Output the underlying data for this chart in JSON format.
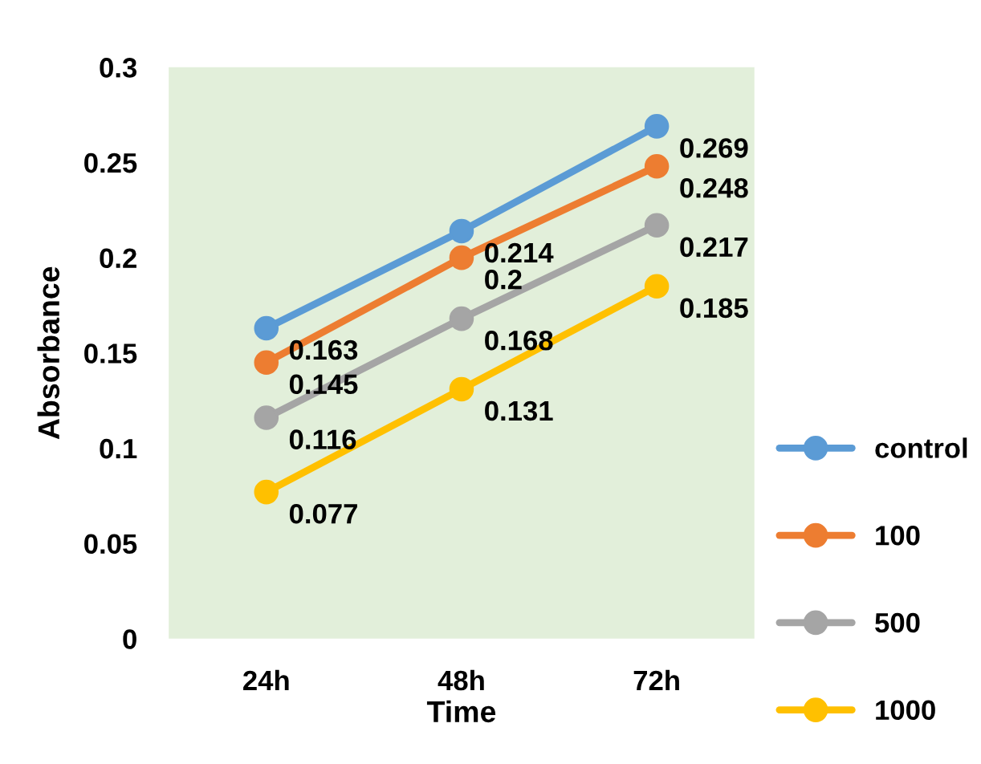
{
  "chart_data": {
    "type": "line",
    "xlabel": "Time",
    "ylabel": "Absorbance",
    "categories": [
      "24h",
      "48h",
      "72h"
    ],
    "series": [
      {
        "name": "control",
        "color": "#5b9bd5",
        "values": [
          0.163,
          0.214,
          0.269
        ]
      },
      {
        "name": "100",
        "color": "#ed7d31",
        "values": [
          0.145,
          0.2,
          0.248
        ]
      },
      {
        "name": "500",
        "color": "#a5a5a5",
        "values": [
          0.116,
          0.168,
          0.217
        ]
      },
      {
        "name": "1000",
        "color": "#ffc000",
        "values": [
          0.077,
          0.131,
          0.185
        ]
      }
    ],
    "ylim": [
      0,
      0.3
    ],
    "yticks": [
      0,
      0.05,
      0.1,
      0.15,
      0.2,
      0.25,
      0.3
    ],
    "grid": false,
    "legend": "right",
    "marker": "circle",
    "line_style": "solid",
    "data_labels": true
  }
}
